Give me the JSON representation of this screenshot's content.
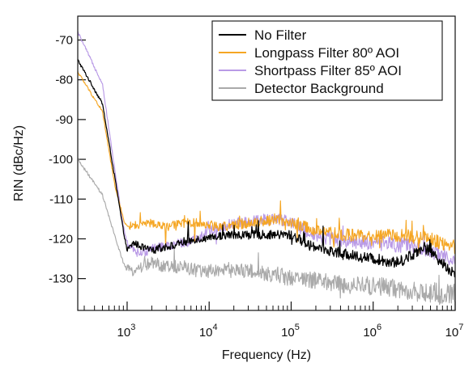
{
  "chart_data": {
    "type": "line",
    "xlabel": "Frequency (Hz)",
    "ylabel": "RIN (dBc/Hz)",
    "x_scale": "log",
    "xlim": [
      250,
      10000000
    ],
    "ylim": [
      -138,
      -64
    ],
    "x_major_ticks": [
      1000,
      10000,
      100000,
      1000000,
      10000000
    ],
    "x_tick_labels": [
      {
        "base": "10",
        "exp": "3"
      },
      {
        "base": "10",
        "exp": "4"
      },
      {
        "base": "10",
        "exp": "5"
      },
      {
        "base": "10",
        "exp": "6"
      },
      {
        "base": "10",
        "exp": "7"
      }
    ],
    "y_major_ticks": [
      -70,
      -80,
      -90,
      -100,
      -110,
      -120,
      -130
    ],
    "y_tick_labels": [
      "-70",
      "-80",
      "-90",
      "-100",
      "-110",
      "-120",
      "-130"
    ],
    "grid": false,
    "legend_position": "top-right",
    "series": [
      {
        "name": "No Filter",
        "color": "#000000",
        "x": [
          250,
          500,
          700,
          900,
          1000,
          1200,
          1500,
          2000,
          3000,
          5000,
          7000,
          10000,
          15000,
          20000,
          30000,
          50000,
          70000,
          100000,
          150000,
          200000,
          300000,
          500000,
          1000000,
          2000000,
          3000000,
          4000000,
          5000000,
          7000000,
          10000000
        ],
        "y": [
          -75,
          -86,
          -104,
          -118,
          -123,
          -121,
          -122,
          -123,
          -122,
          -121,
          -120,
          -120,
          -119,
          -119,
          -119,
          -119,
          -119,
          -119,
          -121,
          -122,
          -123,
          -124,
          -125,
          -126,
          -124,
          -122,
          -123,
          -126,
          -129
        ]
      },
      {
        "name": "Longpass Filter 80º AOI",
        "color": "#f5a623",
        "x": [
          250,
          500,
          700,
          900,
          1000,
          1200,
          1500,
          2000,
          3000,
          5000,
          7000,
          10000,
          15000,
          20000,
          30000,
          50000,
          70000,
          100000,
          150000,
          200000,
          300000,
          500000,
          1000000,
          2000000,
          3000000,
          5000000,
          7000000,
          10000000
        ],
        "y": [
          -78,
          -88,
          -106,
          -115,
          -117,
          -116.5,
          -116.5,
          -116,
          -117,
          -116,
          -116,
          -116.5,
          -117,
          -116.5,
          -116,
          -115.5,
          -115,
          -116,
          -117,
          -118,
          -118.5,
          -119,
          -119.5,
          -119,
          -119.5,
          -120,
          -121,
          -122
        ]
      },
      {
        "name": "Shortpass Filter 85º AOI",
        "color": "#b99ae6",
        "x": [
          250,
          500,
          700,
          900,
          1000,
          1200,
          1500,
          2000,
          3000,
          5000,
          7000,
          10000,
          15000,
          20000,
          30000,
          50000,
          70000,
          100000,
          150000,
          200000,
          300000,
          500000,
          1000000,
          2000000,
          3000000,
          5000000,
          7000000,
          10000000
        ],
        "y": [
          -68,
          -81,
          -102,
          -117,
          -121,
          -123,
          -124,
          -122,
          -122,
          -121,
          -120,
          -118,
          -117,
          -116,
          -116,
          -115,
          -115,
          -116,
          -118,
          -119,
          -120,
          -120.5,
          -121,
          -121.5,
          -122,
          -123,
          -124,
          -125
        ]
      },
      {
        "name": "Detector Background",
        "color": "#aaaaaa",
        "x": [
          250,
          500,
          700,
          900,
          1000,
          1200,
          1500,
          2000,
          3000,
          5000,
          7000,
          10000,
          15000,
          20000,
          30000,
          50000,
          70000,
          100000,
          150000,
          200000,
          300000,
          500000,
          1000000,
          2000000,
          3000000,
          5000000,
          7000000,
          10000000
        ],
        "y": [
          -100,
          -109,
          -119,
          -126,
          -128,
          -128,
          -127,
          -126,
          -127,
          -127,
          -128,
          -128,
          -128,
          -128,
          -128,
          -129,
          -129,
          -130,
          -130,
          -130.5,
          -131,
          -131.5,
          -132,
          -132.5,
          -133,
          -133.5,
          -134,
          -134
        ]
      }
    ]
  }
}
